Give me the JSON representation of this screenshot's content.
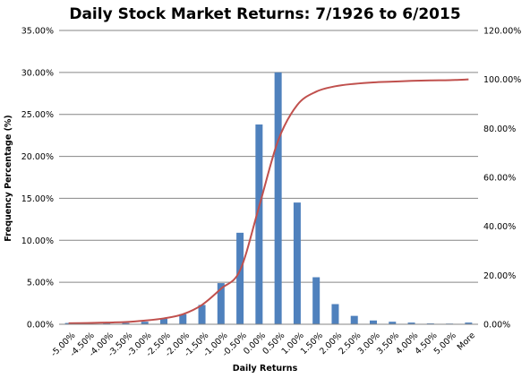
{
  "chart_data": {
    "type": "bar",
    "title": "Daily Stock Market Returns: 7/1926 to 6/2015",
    "xlabel": "Daily Returns",
    "ylabel": "Frequency Percentage (%)",
    "categories": [
      "-5.00%",
      "-4.50%",
      "-4.00%",
      "-3.50%",
      "-3.00%",
      "-2.50%",
      "-2.00%",
      "-1.50%",
      "-1.00%",
      "-0.50%",
      "0.00%",
      "0.50%",
      "1.00%",
      "1.50%",
      "2.00%",
      "2.50%",
      "3.00%",
      "3.50%",
      "4.00%",
      "4.50%",
      "5.00%",
      "More"
    ],
    "ylim": [
      0,
      35
    ],
    "y_ticks": [
      "0.00%",
      "5.00%",
      "10.00%",
      "15.00%",
      "20.00%",
      "25.00%",
      "30.00%",
      "35.00%"
    ],
    "y2lim": [
      0,
      120
    ],
    "y2_ticks": [
      "0.00%",
      "20.00%",
      "40.00%",
      "60.00%",
      "80.00%",
      "100.00%",
      "120.00%"
    ],
    "grid": true,
    "legend": "none",
    "series": [
      {
        "type": "bar",
        "axis": "left",
        "color": "#4F81BD",
        "values": [
          0.15,
          0.05,
          0.1,
          0.15,
          0.3,
          0.65,
          1.2,
          2.3,
          4.9,
          10.9,
          23.8,
          30.0,
          14.5,
          5.6,
          2.4,
          1.0,
          0.45,
          0.3,
          0.2,
          0.1,
          0.08,
          0.2
        ]
      },
      {
        "type": "line",
        "axis": "right",
        "color": "#C0504D",
        "values": [
          0.4,
          0.5,
          0.7,
          0.9,
          1.5,
          2.4,
          4.1,
          7.9,
          14.5,
          22.0,
          48.0,
          75.0,
          89.5,
          95.0,
          97.2,
          98.2,
          98.8,
          99.1,
          99.4,
          99.6,
          99.7,
          100.0
        ]
      }
    ]
  }
}
